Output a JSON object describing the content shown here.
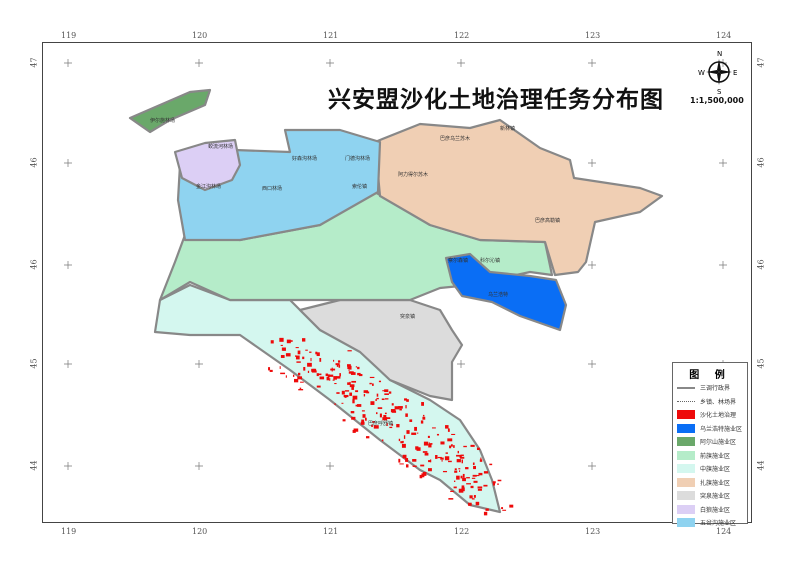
{
  "map": {
    "title": "兴安盟沙化土地治理任务分布图",
    "scale": "1:1,500,000",
    "compass": {
      "n": "N",
      "s": "S",
      "e": "E",
      "w": "W"
    },
    "lon_ticks": [
      "119",
      "120",
      "121",
      "122",
      "123",
      "124"
    ],
    "lat_ticks": [
      "47",
      "46",
      "46",
      "45",
      "44"
    ],
    "colors": {
      "desert": "#ee0a0a",
      "ulanhot": "#0a6ef5",
      "arxan": "#6aa86a",
      "qianqi": "#b5ecc9",
      "zhongqi": "#d4f7ef",
      "zhaqi": "#f0cfb4",
      "tuquan": "#dcdcdc",
      "bailang": "#dccff5",
      "wuchagou": "#8fd3f0"
    },
    "place_labels": [
      {
        "name": "伊尔施林场"
      },
      {
        "name": "蛟流河林场"
      },
      {
        "name": "金江沟林场"
      },
      {
        "name": "好森沟林场"
      },
      {
        "name": "门德沟林场"
      },
      {
        "name": "西口林场"
      },
      {
        "name": "阿力得尔苏木"
      },
      {
        "name": "巴彦乌兰苏木"
      },
      {
        "name": "新林镇"
      },
      {
        "name": "巴彦高勒镇"
      },
      {
        "name": "察尔森镇"
      },
      {
        "name": "科尔沁镇"
      },
      {
        "name": "乌兰浩特"
      },
      {
        "name": "突泉镇"
      },
      {
        "name": "巴彦呼舒镇"
      },
      {
        "name": "索伦镇"
      }
    ]
  },
  "legend": {
    "title": "图  例",
    "items": [
      {
        "label": "三调行政界",
        "type": "line-thick"
      },
      {
        "label": "乡镇、林场界",
        "type": "line-dotted"
      },
      {
        "label": "沙化土地治理",
        "color": "#ee0a0a"
      },
      {
        "label": "乌兰浩特施业区",
        "color": "#0a6ef5"
      },
      {
        "label": "阿尔山施业区",
        "color": "#6aa86a"
      },
      {
        "label": "前旗施业区",
        "color": "#b5ecc9"
      },
      {
        "label": "中旗施业区",
        "color": "#d4f7ef"
      },
      {
        "label": "扎旗施业区",
        "color": "#f0cfb4"
      },
      {
        "label": "突泉施业区",
        "color": "#dcdcdc"
      },
      {
        "label": "白狼施业区",
        "color": "#dccff5"
      },
      {
        "label": "五岔沟施业区",
        "color": "#8fd3f0"
      }
    ]
  }
}
